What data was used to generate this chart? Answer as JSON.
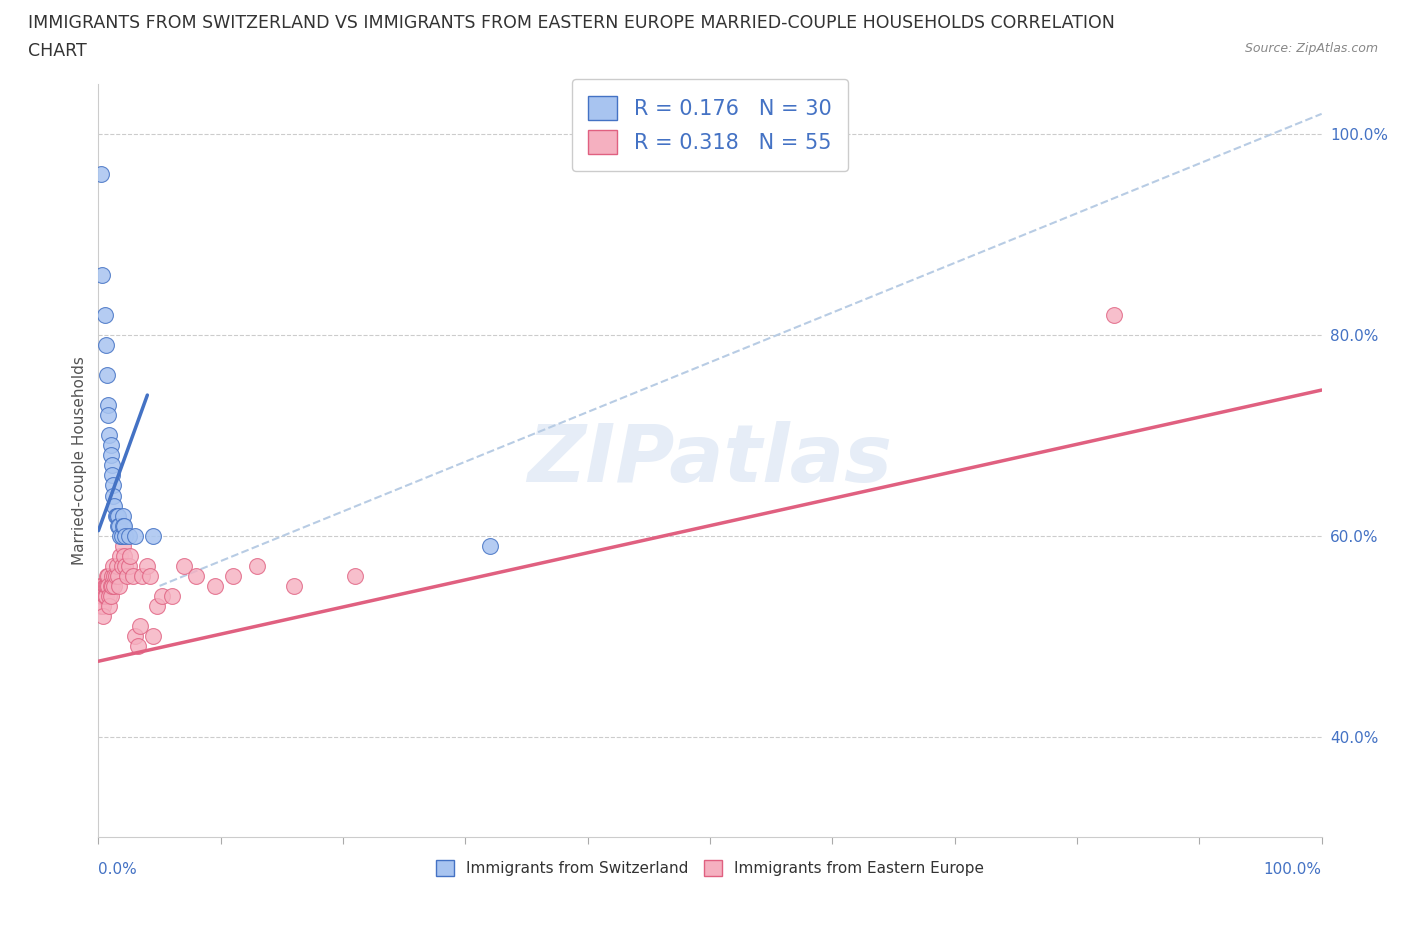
{
  "title_line1": "IMMIGRANTS FROM SWITZERLAND VS IMMIGRANTS FROM EASTERN EUROPE MARRIED-COUPLE HOUSEHOLDS CORRELATION",
  "title_line2": "CHART",
  "source": "Source: ZipAtlas.com",
  "ylabel": "Married-couple Households",
  "watermark": "ZIPatlas",
  "blue_r": 0.176,
  "blue_n": 30,
  "pink_r": 0.318,
  "pink_n": 55,
  "blue_scatter_x": [
    0.002,
    0.003,
    0.005,
    0.006,
    0.007,
    0.008,
    0.008,
    0.009,
    0.01,
    0.01,
    0.011,
    0.011,
    0.012,
    0.012,
    0.013,
    0.014,
    0.015,
    0.016,
    0.016,
    0.017,
    0.018,
    0.019,
    0.02,
    0.02,
    0.021,
    0.022,
    0.025,
    0.03,
    0.045,
    0.32
  ],
  "blue_scatter_y": [
    0.96,
    0.86,
    0.82,
    0.79,
    0.76,
    0.73,
    0.72,
    0.7,
    0.69,
    0.68,
    0.67,
    0.66,
    0.65,
    0.64,
    0.63,
    0.62,
    0.62,
    0.62,
    0.61,
    0.61,
    0.6,
    0.6,
    0.62,
    0.61,
    0.61,
    0.6,
    0.6,
    0.6,
    0.6,
    0.59
  ],
  "pink_scatter_x": [
    0.001,
    0.002,
    0.002,
    0.003,
    0.003,
    0.004,
    0.004,
    0.005,
    0.005,
    0.006,
    0.006,
    0.007,
    0.007,
    0.008,
    0.008,
    0.009,
    0.009,
    0.01,
    0.01,
    0.011,
    0.011,
    0.012,
    0.013,
    0.013,
    0.014,
    0.015,
    0.016,
    0.017,
    0.018,
    0.019,
    0.02,
    0.021,
    0.022,
    0.023,
    0.025,
    0.026,
    0.028,
    0.03,
    0.032,
    0.034,
    0.036,
    0.04,
    0.042,
    0.045,
    0.048,
    0.052,
    0.06,
    0.07,
    0.08,
    0.095,
    0.11,
    0.13,
    0.16,
    0.21,
    0.83
  ],
  "pink_scatter_y": [
    0.55,
    0.54,
    0.53,
    0.55,
    0.54,
    0.53,
    0.52,
    0.55,
    0.54,
    0.55,
    0.54,
    0.56,
    0.55,
    0.56,
    0.55,
    0.54,
    0.53,
    0.55,
    0.54,
    0.56,
    0.55,
    0.57,
    0.56,
    0.55,
    0.56,
    0.57,
    0.56,
    0.55,
    0.58,
    0.57,
    0.59,
    0.58,
    0.57,
    0.56,
    0.57,
    0.58,
    0.56,
    0.5,
    0.49,
    0.51,
    0.56,
    0.57,
    0.56,
    0.5,
    0.53,
    0.54,
    0.54,
    0.57,
    0.56,
    0.55,
    0.56,
    0.57,
    0.55,
    0.56,
    0.82
  ],
  "blue_color": "#a8c4f0",
  "pink_color": "#f5b0c0",
  "blue_line_color": "#4472c4",
  "pink_line_color": "#e06080",
  "dashed_line_color": "#b8cce4",
  "xlim": [
    0.0,
    1.0
  ],
  "ylim": [
    0.3,
    1.05
  ],
  "ytick_vals": [
    0.4,
    0.6,
    0.8,
    1.0
  ],
  "ytick_labels": [
    "40.0%",
    "60.0%",
    "80.0%",
    "100.0%"
  ],
  "xtick_positions": [
    0.0,
    0.1,
    0.2,
    0.3,
    0.4,
    0.5,
    0.6,
    0.7,
    0.8,
    0.9,
    1.0
  ],
  "title_fontsize": 12.5,
  "axis_label_fontsize": 11,
  "tick_fontsize": 11,
  "legend_fontsize": 15
}
